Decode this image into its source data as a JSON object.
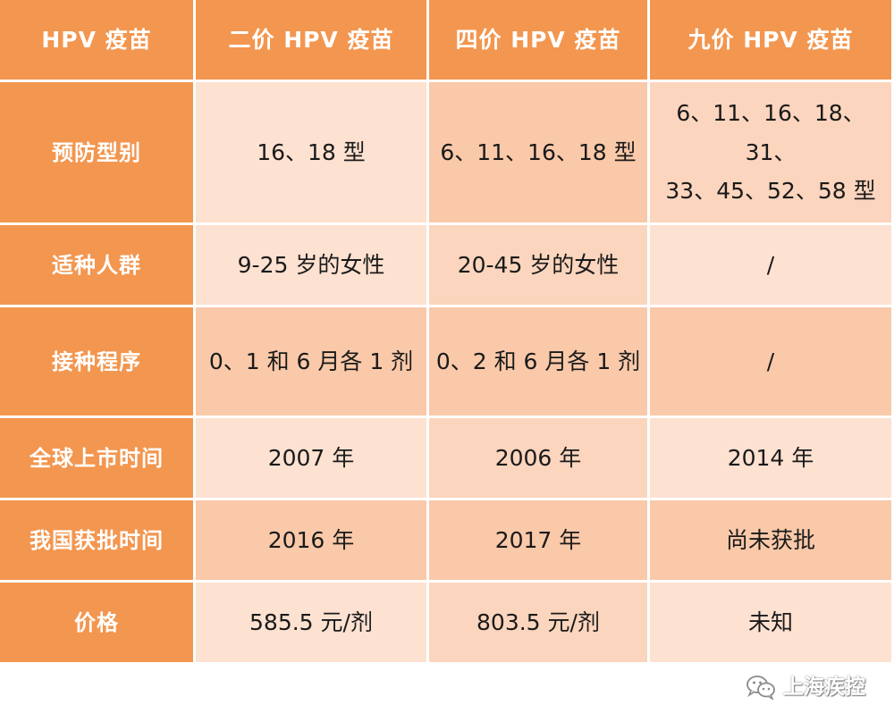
{
  "table": {
    "headers": [
      "HPV 疫苗",
      "二价 HPV 疫苗",
      "四价 HPV 疫苗",
      "九价 HPV 疫苗"
    ],
    "rows": [
      {
        "label": "预防型别",
        "values": [
          "16、18 型",
          "6、11、16、18 型",
          "6、11、16、18、31、\n33、45、52、58 型"
        ]
      },
      {
        "label": "适种人群",
        "values": [
          "9-25 岁的女性",
          "20-45 岁的女性",
          "/"
        ]
      },
      {
        "label": "接种程序",
        "values": [
          "0、1 和 6 月各 1 剂",
          "0、2 和 6 月各 1 剂",
          "/"
        ]
      },
      {
        "label": "全球上市时间",
        "values": [
          "2007 年",
          "2006 年",
          "2014 年"
        ]
      },
      {
        "label": "我国获批时间",
        "values": [
          "2016 年",
          "2017 年",
          "尚未获批"
        ]
      },
      {
        "label": "价格",
        "values": [
          "585.5 元/剂",
          "803.5 元/剂",
          "未知"
        ]
      }
    ]
  },
  "watermark": {
    "text": "上海疾控",
    "icon": "wechat-icon"
  }
}
